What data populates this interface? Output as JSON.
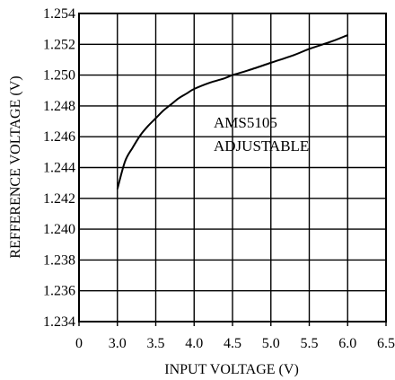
{
  "chart_data": {
    "type": "line",
    "title": "",
    "xlabel": "INPUT VOLTAGE (V)",
    "ylabel": "REFFERENCE VOLTAGE (V)",
    "xlim": [
      0,
      6.5
    ],
    "ylim": [
      1.234,
      1.254
    ],
    "grid": true,
    "x_ticks": [
      "0",
      "3.0",
      "3.5",
      "4.0",
      "4.5",
      "5.0",
      "5.5",
      "6.0",
      "6.5"
    ],
    "y_ticks": [
      "1.234",
      "1.236",
      "1.238",
      "1.240",
      "1.242",
      "1.244",
      "1.246",
      "1.248",
      "1.250",
      "1.252",
      "1.254"
    ],
    "annotation": [
      "AMS5105",
      "ADJUSTABLE"
    ],
    "series": [
      {
        "x": [
          3.0,
          3.1,
          3.2,
          3.3,
          3.4,
          3.5,
          3.6,
          3.7,
          3.8,
          3.9,
          4.0,
          4.2,
          4.4,
          4.5,
          4.7,
          5.0,
          5.3,
          5.5,
          5.8,
          6.0
        ],
        "y": [
          1.2426,
          1.2444,
          1.2453,
          1.2461,
          1.2467,
          1.2472,
          1.2477,
          1.2481,
          1.2485,
          1.2488,
          1.2491,
          1.2495,
          1.2498,
          1.25,
          1.2503,
          1.2508,
          1.2513,
          1.2517,
          1.2522,
          1.2526
        ],
        "color": "#000000"
      }
    ]
  }
}
